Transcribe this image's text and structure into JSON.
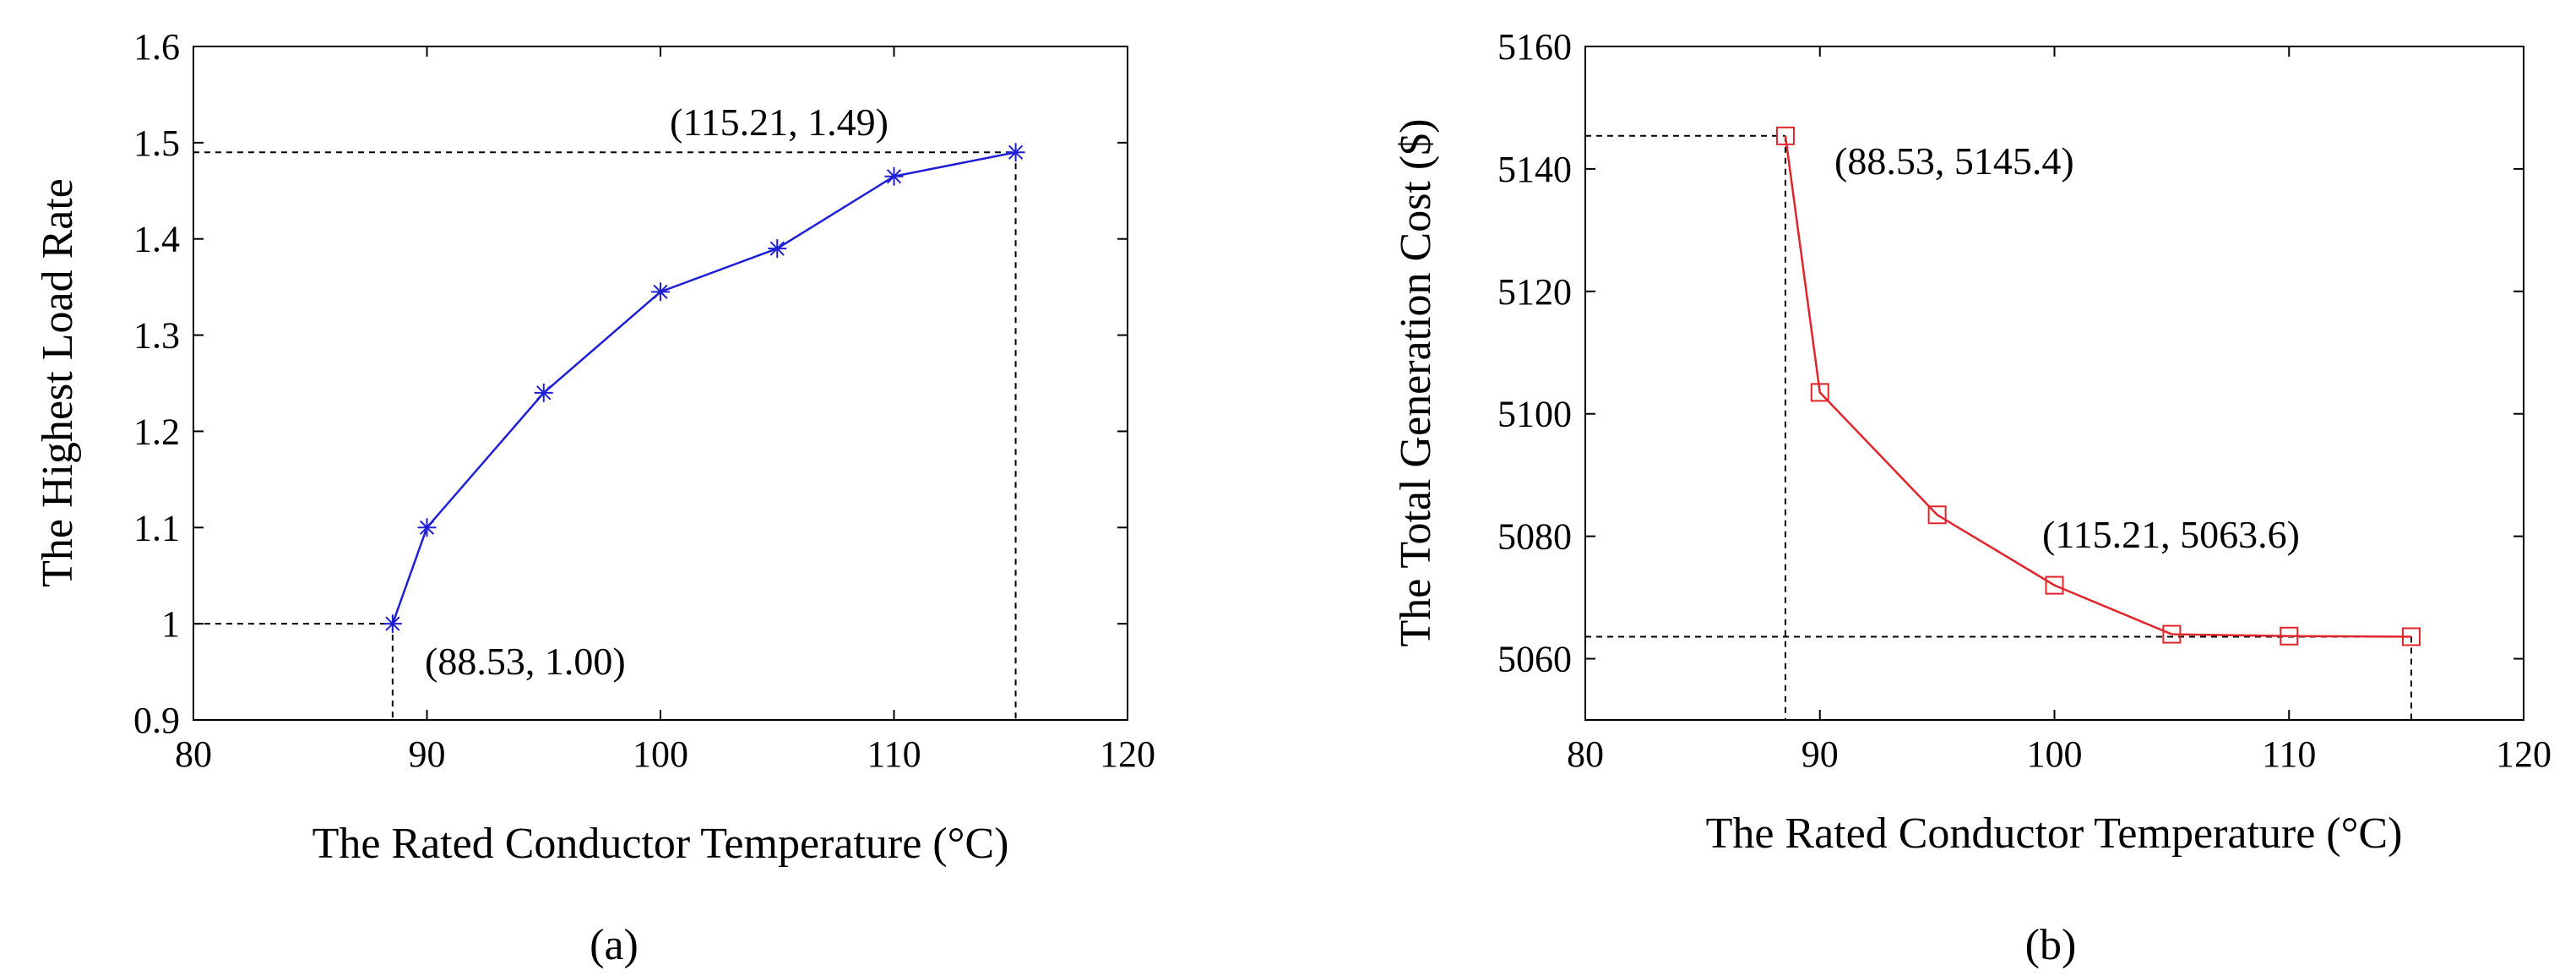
{
  "chart_data": [
    {
      "type": "line",
      "caption": "(a)",
      "xlabel": "The Rated Conductor Temperature (°C)",
      "ylabel": "The Highest Load Rate",
      "xlim": [
        80,
        120
      ],
      "ylim": [
        0.9,
        1.6
      ],
      "xticks": [
        80,
        90,
        100,
        110,
        120
      ],
      "yticks": [
        0.9,
        1.0,
        1.1,
        1.2,
        1.3,
        1.4,
        1.5,
        1.6
      ],
      "ytick_labels": [
        "0.9",
        "1",
        "1.1",
        "1.2",
        "1.3",
        "1.4",
        "1.5",
        "1.6"
      ],
      "grid": false,
      "series": [
        {
          "name": "Highest Load Rate",
          "color": "#1f1fd6",
          "marker": "asterisk",
          "x": [
            88.53,
            90,
            95,
            100,
            105,
            110,
            115.21
          ],
          "y": [
            1.0,
            1.1,
            1.24,
            1.345,
            1.39,
            1.465,
            1.49
          ]
        }
      ],
      "annotations": [
        {
          "text": "(88.53, 1.00)",
          "x": 88.53,
          "y": 1.0
        },
        {
          "text": "(115.21, 1.49)",
          "x": 115.21,
          "y": 1.49
        }
      ]
    },
    {
      "type": "line",
      "caption": "(b)",
      "xlabel": "The Rated Conductor Temperature (°C)",
      "ylabel": "The Total Generation Cost ($)",
      "xlim": [
        80,
        120
      ],
      "ylim": [
        5050,
        5160
      ],
      "xticks": [
        80,
        90,
        100,
        110,
        120
      ],
      "yticks": [
        5060,
        5080,
        5100,
        5120,
        5140,
        5160
      ],
      "ytick_labels": [
        "5060",
        "5080",
        "5100",
        "5120",
        "5140",
        "5160"
      ],
      "grid": false,
      "series": [
        {
          "name": "Total Generation Cost",
          "color": "#e0252a",
          "marker": "square",
          "x": [
            88.53,
            90,
            95,
            100,
            105,
            110,
            115.21
          ],
          "y": [
            5145.4,
            5103.5,
            5083.5,
            5072.0,
            5064.0,
            5063.7,
            5063.6
          ]
        }
      ],
      "annotations": [
        {
          "text": "(88.53, 5145.4)",
          "x": 88.53,
          "y": 5145.4
        },
        {
          "text": "(115.21, 5063.6)",
          "x": 115.21,
          "y": 5063.6
        }
      ]
    }
  ]
}
